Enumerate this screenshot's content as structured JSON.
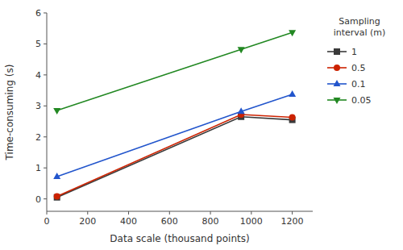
{
  "chart_data": {
    "type": "line",
    "x_label": "Data scale (thousand points)",
    "y_label": "Time-consuming (s)",
    "legend_title": "Sampling\ninterval (m)",
    "x": [
      50,
      950,
      1200
    ],
    "series": [
      {
        "name": "1",
        "color": "#3a3a3a",
        "marker": "square",
        "line_style": "solid",
        "values": [
          0.05,
          2.65,
          2.55
        ]
      },
      {
        "name": "0.5",
        "color": "#cc2200",
        "marker": "circle",
        "line_style": "solid",
        "values": [
          0.08,
          2.72,
          2.63
        ]
      },
      {
        "name": "0.1",
        "color": "#2255cc",
        "marker": "triangle-up",
        "line_style": "solid",
        "values": [
          0.72,
          2.82,
          3.37
        ]
      },
      {
        "name": "0.05",
        "color": "#228822",
        "marker": "triangle-down",
        "line_style": "solid",
        "values": [
          2.85,
          4.82,
          5.37
        ]
      }
    ],
    "xlim": [
      0,
      1300
    ],
    "ylim": [
      -0.4,
      6
    ],
    "xticks": [
      0,
      200,
      400,
      600,
      800,
      1000,
      1200
    ],
    "yticks": [
      0,
      1,
      2,
      3,
      4,
      5,
      6
    ],
    "grid": false,
    "legend": "right"
  }
}
